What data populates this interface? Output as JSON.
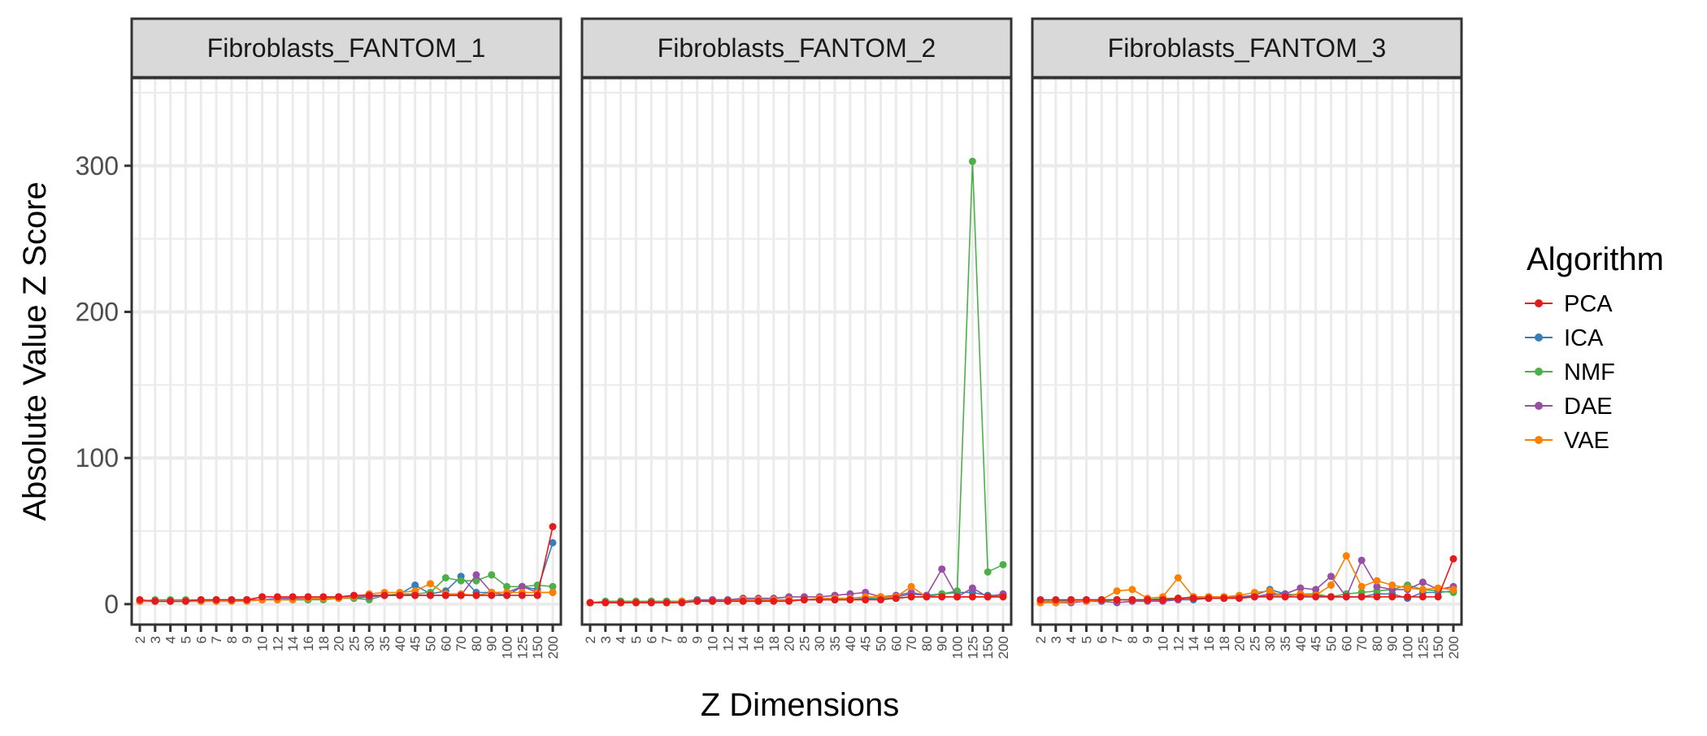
{
  "chart_data": {
    "type": "line",
    "xlabel": "Z Dimensions",
    "ylabel": "Absolute Value Z Score",
    "ylim": [
      -14,
      360
    ],
    "yticks": [
      0,
      100,
      200,
      300
    ],
    "x": [
      "2",
      "3",
      "4",
      "5",
      "6",
      "7",
      "8",
      "9",
      "10",
      "12",
      "14",
      "16",
      "18",
      "20",
      "25",
      "30",
      "35",
      "40",
      "45",
      "50",
      "60",
      "70",
      "80",
      "90",
      "100",
      "125",
      "150",
      "200"
    ],
    "legend": {
      "title": "Algorithm",
      "position": "right"
    },
    "colors": {
      "PCA": "#E41A1C",
      "ICA": "#377EB8",
      "NMF": "#4DAF4A",
      "DAE": "#984EA3",
      "VAE": "#FF7F00"
    },
    "grid": true,
    "panels": [
      {
        "title": "Fibroblasts_FANTOM_1",
        "series": [
          {
            "name": "PCA",
            "values": [
              3,
              2,
              2,
              2,
              3,
              3,
              3,
              3,
              5,
              5,
              5,
              5,
              5,
              5,
              6,
              6,
              6,
              6,
              6,
              6,
              6,
              6,
              6,
              6,
              6,
              6,
              6,
              53
            ]
          },
          {
            "name": "ICA",
            "values": [
              2,
              2,
              2,
              2,
              2,
              3,
              3,
              3,
              3,
              3,
              3,
              3,
              4,
              4,
              4,
              5,
              6,
              7,
              13,
              7,
              9,
              19,
              8,
              8,
              6,
              12,
              10,
              42
            ]
          },
          {
            "name": "NMF",
            "values": [
              2,
              3,
              3,
              3,
              3,
              3,
              3,
              3,
              3,
              3,
              3,
              3,
              3,
              4,
              4,
              3,
              6,
              7,
              7,
              8,
              18,
              16,
              16,
              20,
              12,
              12,
              13,
              12
            ]
          },
          {
            "name": "DAE",
            "values": [
              2,
              2,
              2,
              2,
              2,
              2,
              2,
              3,
              3,
              4,
              4,
              4,
              4,
              5,
              5,
              5,
              6,
              6,
              6,
              6,
              6,
              6,
              20,
              8,
              8,
              12,
              8,
              8
            ]
          },
          {
            "name": "VAE",
            "values": [
              2,
              2,
              2,
              2,
              2,
              2,
              2,
              2,
              3,
              3,
              3,
              4,
              4,
              4,
              5,
              7,
              8,
              8,
              9,
              14,
              7,
              7,
              6,
              8,
              8,
              8,
              8,
              8
            ]
          }
        ]
      },
      {
        "title": "Fibroblasts_FANTOM_2",
        "series": [
          {
            "name": "PCA",
            "values": [
              1,
              1,
              1,
              1,
              1,
              1,
              1,
              2,
              2,
              2,
              2,
              2,
              2,
              2,
              3,
              3,
              3,
              3,
              3,
              3,
              4,
              5,
              5,
              5,
              5,
              5,
              5,
              5
            ]
          },
          {
            "name": "ICA",
            "values": [
              1,
              1,
              1,
              1,
              2,
              2,
              2,
              3,
              3,
              3,
              3,
              3,
              3,
              3,
              3,
              3,
              3,
              3,
              4,
              4,
              5,
              7,
              6,
              7,
              8,
              8,
              6,
              6
            ]
          },
          {
            "name": "NMF",
            "values": [
              1,
              2,
              2,
              2,
              2,
              2,
              2,
              2,
              2,
              2,
              2,
              2,
              3,
              3,
              3,
              3,
              3,
              3,
              3,
              4,
              4,
              5,
              5,
              7,
              9,
              303,
              22,
              27
            ]
          },
          {
            "name": "DAE",
            "values": [
              1,
              1,
              1,
              1,
              1,
              1,
              1,
              2,
              3,
              3,
              4,
              4,
              4,
              5,
              5,
              5,
              6,
              7,
              8,
              5,
              6,
              8,
              6,
              24,
              5,
              11,
              5,
              7
            ]
          },
          {
            "name": "VAE",
            "values": [
              1,
              1,
              1,
              1,
              1,
              1,
              2,
              2,
              2,
              2,
              3,
              3,
              3,
              3,
              3,
              4,
              4,
              4,
              5,
              5,
              5,
              12,
              5,
              5,
              5,
              5,
              5,
              5
            ]
          }
        ]
      },
      {
        "title": "Fibroblasts_FANTOM_3",
        "series": [
          {
            "name": "PCA",
            "values": [
              3,
              3,
              3,
              3,
              3,
              3,
              3,
              3,
              3,
              4,
              4,
              4,
              4,
              4,
              5,
              5,
              5,
              5,
              5,
              5,
              5,
              5,
              5,
              5,
              5,
              5,
              5,
              31
            ]
          },
          {
            "name": "ICA",
            "values": [
              2,
              2,
              3,
              3,
              3,
              3,
              3,
              3,
              3,
              3,
              3,
              4,
              4,
              5,
              6,
              10,
              7,
              6,
              6,
              5,
              5,
              5,
              7,
              7,
              4,
              8,
              8,
              9
            ]
          },
          {
            "name": "NMF",
            "values": [
              2,
              2,
              2,
              2,
              2,
              3,
              3,
              3,
              4,
              4,
              5,
              5,
              5,
              5,
              5,
              6,
              6,
              7,
              7,
              5,
              7,
              8,
              9,
              10,
              13,
              10,
              9,
              8
            ]
          },
          {
            "name": "DAE",
            "values": [
              1,
              1,
              1,
              2,
              2,
              1,
              2,
              2,
              2,
              3,
              5,
              5,
              5,
              5,
              5,
              7,
              7,
              11,
              10,
              19,
              5,
              30,
              12,
              10,
              10,
              15,
              10,
              12
            ]
          },
          {
            "name": "VAE",
            "values": [
              1,
              1,
              2,
              2,
              3,
              9,
              10,
              4,
              5,
              18,
              5,
              5,
              5,
              6,
              8,
              9,
              5,
              7,
              6,
              13,
              33,
              12,
              16,
              13,
              11,
              10,
              11,
              10
            ]
          }
        ]
      }
    ]
  }
}
